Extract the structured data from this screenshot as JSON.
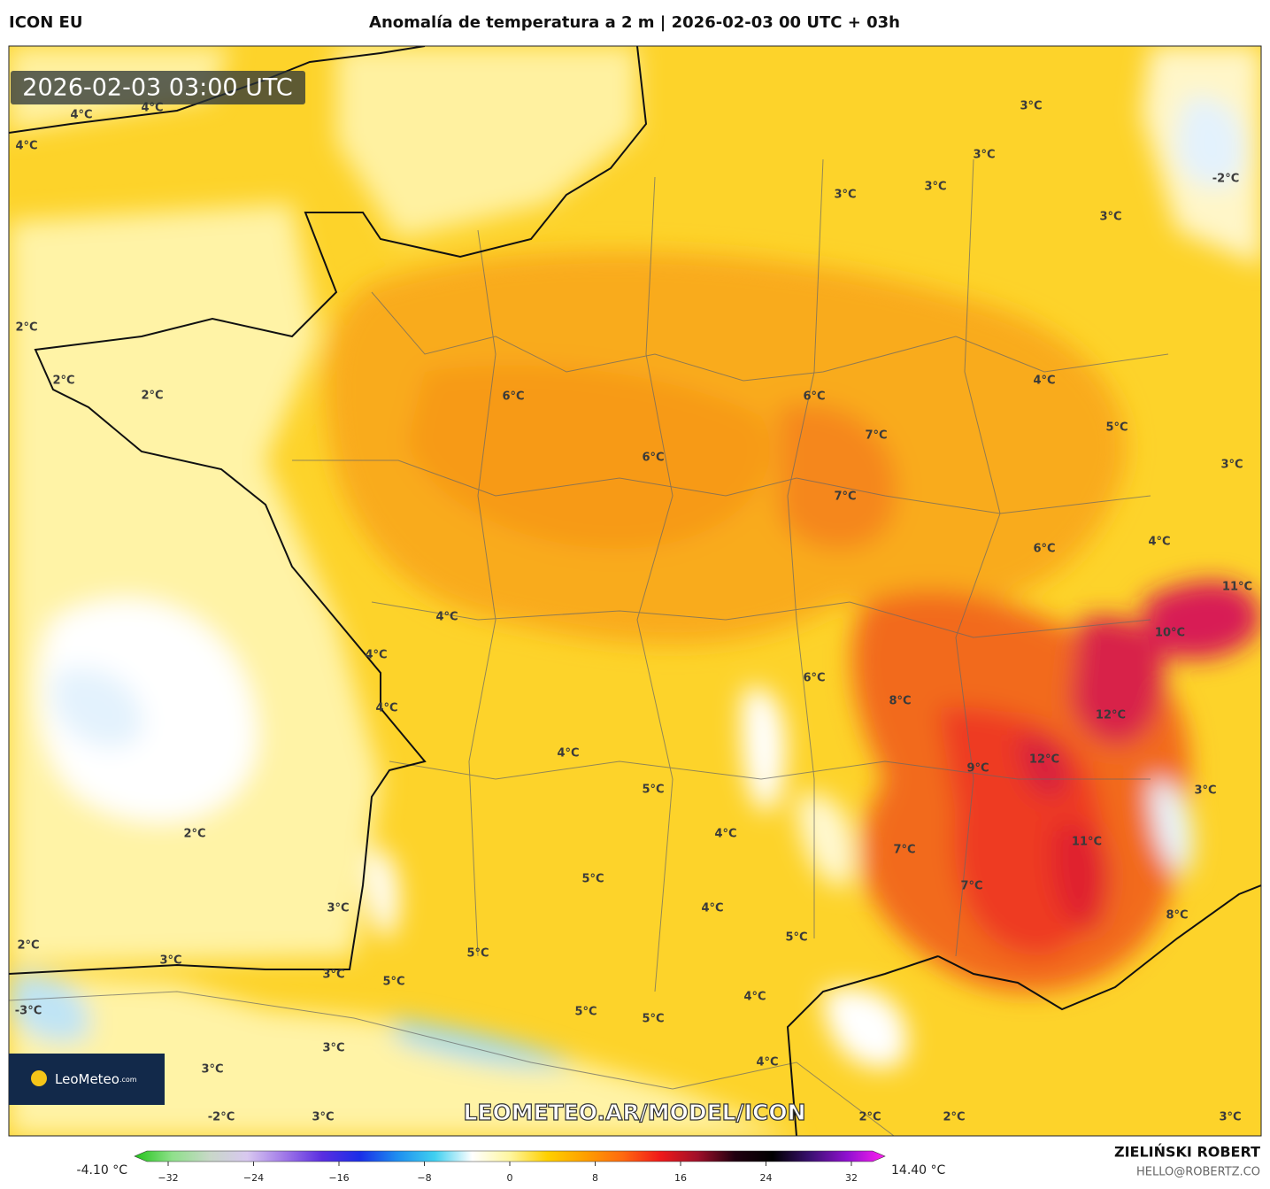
{
  "header": {
    "model": "ICON EU",
    "title": "Anomalía de temperatura a 2 m | 2026-02-03 00 UTC + 03h"
  },
  "map": {
    "timestamp": "2026-02-03 03:00 UTC",
    "labels": [
      "4°C",
      "4°C",
      "4°C",
      "3°C",
      "3°C",
      "3°C",
      "3°C",
      "-2°C",
      "3°C",
      "2°C",
      "2°C",
      "2°C",
      "6°C",
      "6°C",
      "4°C",
      "7°C",
      "5°C",
      "6°C",
      "3°C",
      "7°C",
      "4°C",
      "6°C",
      "11°C",
      "10°C",
      "4°C",
      "4°C",
      "6°C",
      "8°C",
      "4°C",
      "12°C",
      "4°C",
      "12°C",
      "9°C",
      "5°C",
      "3°C",
      "2°C",
      "4°C",
      "11°C",
      "7°C",
      "5°C",
      "7°C",
      "3°C",
      "4°C",
      "8°C",
      "2°C",
      "5°C",
      "5°C",
      "3°C",
      "3°C",
      "5°C",
      "-3°C",
      "4°C",
      "5°C",
      "5°C",
      "3°C",
      "4°C",
      "3°C",
      "-2°C",
      "3°C",
      "2°C",
      "2°C",
      "3°C"
    ],
    "watermark": "LEOMETEO.AR/MODEL/ICON"
  },
  "logo": {
    "name": "LeoMeteo",
    "suffix": ".com"
  },
  "colorbar": {
    "min_label": "-4.10 °C",
    "max_label": "14.40 °C",
    "ticks": [
      {
        "value": -32,
        "label": "−32"
      },
      {
        "value": -24,
        "label": "−24"
      },
      {
        "value": -16,
        "label": "−16"
      },
      {
        "value": -8,
        "label": "−8"
      },
      0,
      8,
      16,
      24,
      32
    ],
    "colors": [
      "#22c41a",
      "#8ee08a",
      "#c8d8c8",
      "#d8c8f0",
      "#a078e8",
      "#5a2ee0",
      "#1a2ee8",
      "#1e8ef0",
      "#40d0f0",
      "#ffffff",
      "#fff6a0",
      "#ffd000",
      "#ffa000",
      "#ff6a10",
      "#f01a1a",
      "#a0102a",
      "#200010",
      "#000000",
      "#3a1070",
      "#9010d0",
      "#ff20f0"
    ]
  },
  "footer": {
    "author": "ZIELIŃSKI ROBERT",
    "contact": "HELLO@ROBERTZ.CO"
  }
}
